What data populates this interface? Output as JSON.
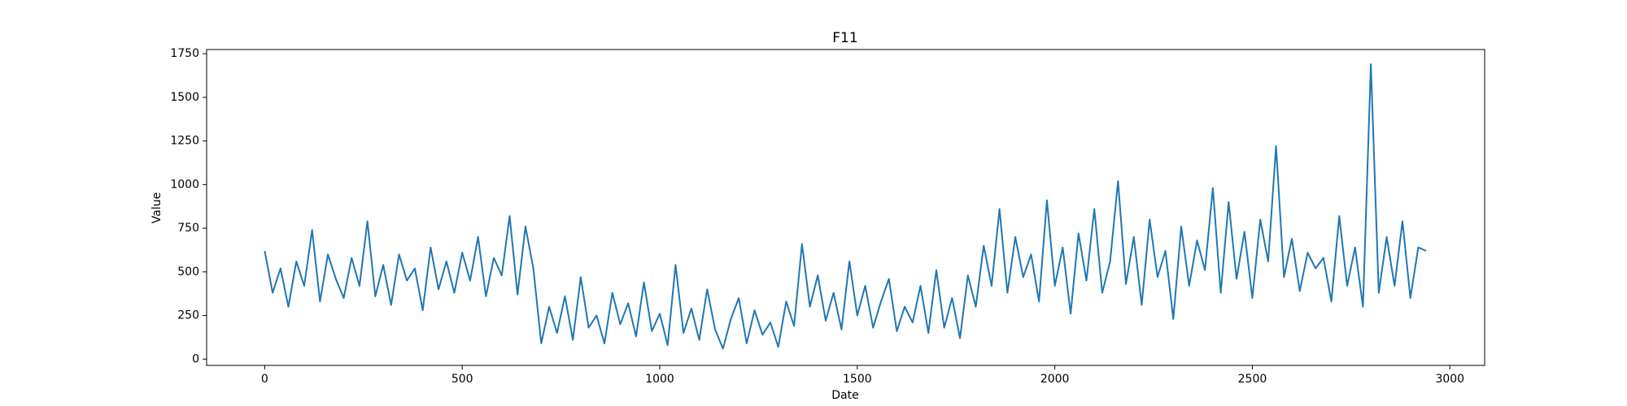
{
  "chart_data": {
    "type": "line",
    "title": "F11",
    "x_label": "Date",
    "y_label": "Value",
    "xlim": [
      -147,
      3088
    ],
    "ylim": [
      -36,
      1774
    ],
    "xticks": [
      0,
      500,
      1000,
      1500,
      2000,
      2500,
      3000
    ],
    "yticks": [
      0,
      250,
      500,
      750,
      1000,
      1250,
      1500,
      1750
    ],
    "series": [
      {
        "color": "#1f77b4",
        "x": [
          0,
          20,
          40,
          60,
          80,
          100,
          120,
          140,
          160,
          180,
          200,
          220,
          240,
          260,
          280,
          300,
          320,
          340,
          360,
          380,
          400,
          420,
          440,
          460,
          480,
          500,
          520,
          540,
          560,
          580,
          600,
          620,
          640,
          660,
          680,
          700,
          720,
          740,
          760,
          780,
          800,
          820,
          840,
          860,
          880,
          900,
          920,
          940,
          960,
          980,
          1000,
          1020,
          1040,
          1060,
          1080,
          1100,
          1120,
          1140,
          1160,
          1180,
          1200,
          1220,
          1240,
          1260,
          1280,
          1300,
          1320,
          1340,
          1360,
          1380,
          1400,
          1420,
          1440,
          1460,
          1480,
          1500,
          1520,
          1540,
          1560,
          1580,
          1600,
          1620,
          1640,
          1660,
          1680,
          1700,
          1720,
          1740,
          1760,
          1780,
          1800,
          1820,
          1840,
          1860,
          1880,
          1900,
          1920,
          1940,
          1960,
          1980,
          2000,
          2020,
          2040,
          2060,
          2080,
          2100,
          2120,
          2140,
          2160,
          2180,
          2200,
          2220,
          2240,
          2260,
          2280,
          2300,
          2320,
          2340,
          2360,
          2380,
          2400,
          2420,
          2440,
          2460,
          2480,
          2500,
          2520,
          2540,
          2560,
          2580,
          2600,
          2620,
          2640,
          2660,
          2680,
          2700,
          2720,
          2740,
          2760,
          2780,
          2800,
          2820,
          2840,
          2860,
          2880,
          2900,
          2920,
          2940
        ],
        "values": [
          620,
          380,
          520,
          300,
          560,
          420,
          740,
          330,
          600,
          460,
          350,
          580,
          420,
          790,
          360,
          540,
          310,
          600,
          450,
          520,
          280,
          640,
          400,
          560,
          380,
          610,
          450,
          700,
          360,
          580,
          480,
          820,
          370,
          760,
          520,
          90,
          300,
          150,
          360,
          110,
          470,
          180,
          250,
          90,
          380,
          200,
          320,
          130,
          440,
          160,
          260,
          80,
          540,
          150,
          290,
          110,
          400,
          170,
          60,
          230,
          350,
          90,
          280,
          140,
          210,
          70,
          330,
          190,
          660,
          300,
          480,
          220,
          380,
          170,
          560,
          250,
          420,
          180,
          330,
          460,
          160,
          300,
          210,
          420,
          150,
          510,
          180,
          350,
          120,
          480,
          300,
          650,
          420,
          860,
          380,
          700,
          470,
          600,
          330,
          910,
          420,
          640,
          260,
          720,
          450,
          860,
          380,
          560,
          1020,
          430,
          700,
          310,
          800,
          470,
          620,
          230,
          760,
          420,
          680,
          510,
          980,
          380,
          900,
          460,
          730,
          350,
          800,
          560,
          1220,
          470,
          690,
          390,
          610,
          520,
          580,
          330,
          820,
          420,
          640,
          300,
          1690,
          380,
          700,
          420,
          790,
          350,
          640,
          620
        ]
      }
    ]
  }
}
